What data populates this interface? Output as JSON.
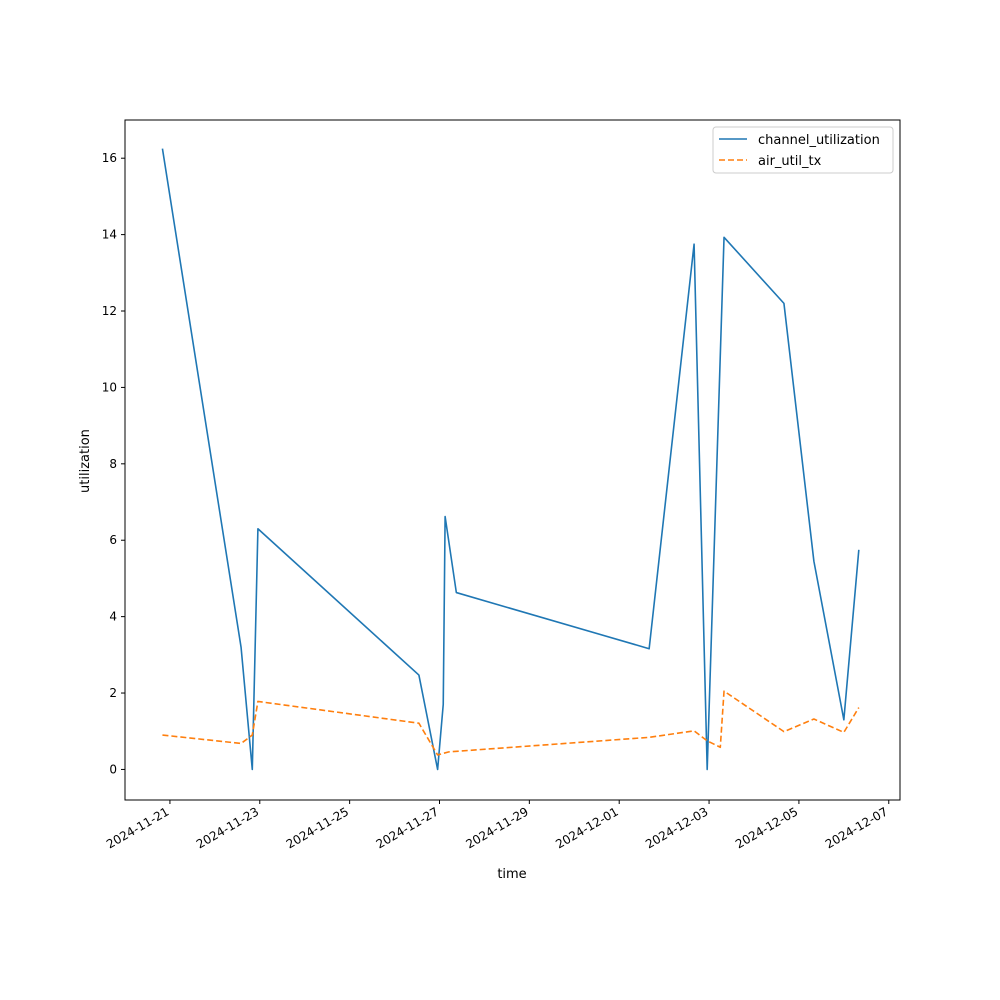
{
  "chart_data": {
    "type": "line",
    "title": "",
    "xlabel": "time",
    "ylabel": "utilization",
    "x_axis_type": "date",
    "xlim": [
      "2024-11-20T00:00",
      "2024-12-07T06:00"
    ],
    "ylim": [
      -0.8,
      17.0
    ],
    "x_ticks": [
      "2024-11-21",
      "2024-11-23",
      "2024-11-25",
      "2024-11-27",
      "2024-11-29",
      "2024-12-01",
      "2024-12-03",
      "2024-12-05",
      "2024-12-07"
    ],
    "y_ticks": [
      0,
      2,
      4,
      6,
      8,
      10,
      12,
      14,
      16
    ],
    "grid": false,
    "legend_position": "top-right",
    "series": [
      {
        "name": "channel_utilization",
        "color": "#1f77b4",
        "style": "solid",
        "points": [
          [
            "2024-11-20T20:00",
            16.25
          ],
          [
            "2024-11-22T14:00",
            3.2
          ],
          [
            "2024-11-22T20:00",
            0.0
          ],
          [
            "2024-11-22T23:00",
            6.3
          ],
          [
            "2024-11-26T13:00",
            2.47
          ],
          [
            "2024-11-26T23:00",
            0.0
          ],
          [
            "2024-11-27T02:00",
            1.7
          ],
          [
            "2024-11-27T03:00",
            6.62
          ],
          [
            "2024-11-27T09:00",
            4.63
          ],
          [
            "2024-12-01T16:00",
            3.16
          ],
          [
            "2024-12-02T16:00",
            13.75
          ],
          [
            "2024-12-02T23:00",
            0.0
          ],
          [
            "2024-12-03T08:00",
            13.93
          ],
          [
            "2024-12-04T16:00",
            12.2
          ],
          [
            "2024-12-05T08:00",
            5.45
          ],
          [
            "2024-12-06T00:00",
            1.3
          ],
          [
            "2024-12-06T08:00",
            5.75
          ]
        ]
      },
      {
        "name": "air_util_tx",
        "color": "#ff7f0e",
        "style": "dashed",
        "points": [
          [
            "2024-11-20T20:00",
            0.9
          ],
          [
            "2024-11-22T14:00",
            0.68
          ],
          [
            "2024-11-22T20:00",
            0.9
          ],
          [
            "2024-11-22T23:00",
            1.78
          ],
          [
            "2024-11-26T13:00",
            1.21
          ],
          [
            "2024-11-26T23:00",
            0.38
          ],
          [
            "2024-11-27T05:00",
            0.46
          ],
          [
            "2024-12-01T16:00",
            0.84
          ],
          [
            "2024-12-02T16:00",
            1.01
          ],
          [
            "2024-12-02T23:00",
            0.75
          ],
          [
            "2024-12-03T06:00",
            0.58
          ],
          [
            "2024-12-03T08:00",
            2.05
          ],
          [
            "2024-12-04T16:00",
            0.99
          ],
          [
            "2024-12-05T08:00",
            1.32
          ],
          [
            "2024-12-06T00:00",
            0.97
          ],
          [
            "2024-12-06T08:00",
            1.62
          ]
        ]
      }
    ]
  }
}
